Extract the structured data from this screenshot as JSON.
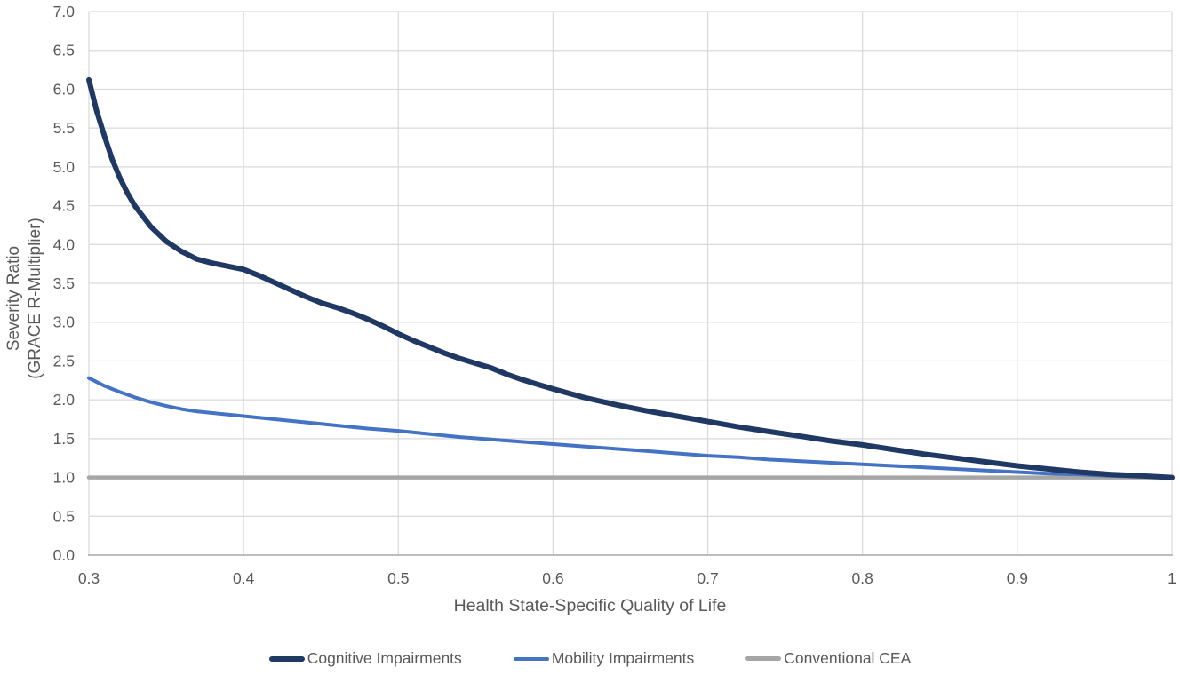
{
  "figure": {
    "background": "#ffffff"
  },
  "chart_data": {
    "type": "line",
    "title": "",
    "xlabel": "Health State-Specific Quality of Life",
    "ylabel_line1": "Severity Ratio",
    "ylabel_line2": "(GRACE R-Multiplier)",
    "xlim": [
      0.3,
      1.0
    ],
    "ylim": [
      0.0,
      7.0
    ],
    "grid": true,
    "legend_position": "bottom",
    "x_ticks": [
      {
        "value": 0.3,
        "label": "0.3"
      },
      {
        "value": 0.4,
        "label": "0.4"
      },
      {
        "value": 0.5,
        "label": "0.5"
      },
      {
        "value": 0.6,
        "label": "0.6"
      },
      {
        "value": 0.7,
        "label": "0.7"
      },
      {
        "value": 0.8,
        "label": "0.8"
      },
      {
        "value": 0.9,
        "label": "0.9"
      },
      {
        "value": 1.0,
        "label": "1"
      }
    ],
    "y_ticks": [
      {
        "value": 0.0,
        "label": "0.0"
      },
      {
        "value": 0.5,
        "label": "0.5"
      },
      {
        "value": 1.0,
        "label": "1.0"
      },
      {
        "value": 1.5,
        "label": "1.5"
      },
      {
        "value": 2.0,
        "label": "2.0"
      },
      {
        "value": 2.5,
        "label": "2.5"
      },
      {
        "value": 3.0,
        "label": "3.0"
      },
      {
        "value": 3.5,
        "label": "3.5"
      },
      {
        "value": 4.0,
        "label": "4.0"
      },
      {
        "value": 4.5,
        "label": "4.5"
      },
      {
        "value": 5.0,
        "label": "5.0"
      },
      {
        "value": 5.5,
        "label": "5.5"
      },
      {
        "value": 6.0,
        "label": "6.0"
      },
      {
        "value": 6.5,
        "label": "6.5"
      },
      {
        "value": 7.0,
        "label": "7.0"
      }
    ],
    "colors": {
      "gridline": "#d9d9d9",
      "axis_line": "#b5b5b5",
      "tick_text": "#595959",
      "title_text": "#595959",
      "legend_text": "#595959"
    },
    "series": [
      {
        "name": "Cognitive Impairments",
        "color": "#1f3864",
        "line_width": 6,
        "points": [
          [
            0.3,
            6.12
          ],
          [
            0.305,
            5.72
          ],
          [
            0.31,
            5.4
          ],
          [
            0.315,
            5.1
          ],
          [
            0.32,
            4.86
          ],
          [
            0.325,
            4.66
          ],
          [
            0.33,
            4.49
          ],
          [
            0.34,
            4.23
          ],
          [
            0.35,
            4.04
          ],
          [
            0.36,
            3.91
          ],
          [
            0.37,
            3.81
          ],
          [
            0.38,
            3.76
          ],
          [
            0.39,
            3.72
          ],
          [
            0.4,
            3.68
          ],
          [
            0.41,
            3.6
          ],
          [
            0.42,
            3.51
          ],
          [
            0.43,
            3.42
          ],
          [
            0.44,
            3.33
          ],
          [
            0.45,
            3.25
          ],
          [
            0.46,
            3.19
          ],
          [
            0.47,
            3.12
          ],
          [
            0.48,
            3.04
          ],
          [
            0.49,
            2.95
          ],
          [
            0.5,
            2.85
          ],
          [
            0.51,
            2.76
          ],
          [
            0.52,
            2.68
          ],
          [
            0.53,
            2.6
          ],
          [
            0.54,
            2.53
          ],
          [
            0.55,
            2.47
          ],
          [
            0.56,
            2.41
          ],
          [
            0.57,
            2.33
          ],
          [
            0.58,
            2.26
          ],
          [
            0.59,
            2.2
          ],
          [
            0.6,
            2.14
          ],
          [
            0.62,
            2.03
          ],
          [
            0.64,
            1.94
          ],
          [
            0.66,
            1.86
          ],
          [
            0.68,
            1.79
          ],
          [
            0.7,
            1.72
          ],
          [
            0.72,
            1.65
          ],
          [
            0.74,
            1.59
          ],
          [
            0.76,
            1.53
          ],
          [
            0.78,
            1.47
          ],
          [
            0.8,
            1.42
          ],
          [
            0.82,
            1.36
          ],
          [
            0.84,
            1.3
          ],
          [
            0.86,
            1.25
          ],
          [
            0.88,
            1.2
          ],
          [
            0.9,
            1.15
          ],
          [
            0.92,
            1.11
          ],
          [
            0.94,
            1.07
          ],
          [
            0.96,
            1.04
          ],
          [
            0.98,
            1.02
          ],
          [
            1.0,
            1.0
          ]
        ]
      },
      {
        "name": "Mobility Impairments",
        "color": "#4472c4",
        "line_width": 4,
        "points": [
          [
            0.3,
            2.28
          ],
          [
            0.31,
            2.18
          ],
          [
            0.32,
            2.1
          ],
          [
            0.33,
            2.03
          ],
          [
            0.34,
            1.97
          ],
          [
            0.35,
            1.92
          ],
          [
            0.36,
            1.88
          ],
          [
            0.37,
            1.85
          ],
          [
            0.38,
            1.83
          ],
          [
            0.39,
            1.81
          ],
          [
            0.4,
            1.79
          ],
          [
            0.42,
            1.75
          ],
          [
            0.44,
            1.71
          ],
          [
            0.46,
            1.67
          ],
          [
            0.48,
            1.63
          ],
          [
            0.5,
            1.6
          ],
          [
            0.52,
            1.56
          ],
          [
            0.54,
            1.52
          ],
          [
            0.56,
            1.49
          ],
          [
            0.58,
            1.46
          ],
          [
            0.6,
            1.43
          ],
          [
            0.62,
            1.4
          ],
          [
            0.64,
            1.37
          ],
          [
            0.66,
            1.34
          ],
          [
            0.68,
            1.31
          ],
          [
            0.7,
            1.28
          ],
          [
            0.72,
            1.26
          ],
          [
            0.74,
            1.23
          ],
          [
            0.76,
            1.21
          ],
          [
            0.78,
            1.19
          ],
          [
            0.8,
            1.17
          ],
          [
            0.82,
            1.15
          ],
          [
            0.84,
            1.13
          ],
          [
            0.86,
            1.11
          ],
          [
            0.88,
            1.09
          ],
          [
            0.9,
            1.07
          ],
          [
            0.92,
            1.05
          ],
          [
            0.94,
            1.04
          ],
          [
            0.96,
            1.02
          ],
          [
            0.98,
            1.01
          ],
          [
            1.0,
            1.0
          ]
        ]
      },
      {
        "name": "Conventional CEA",
        "color": "#a6a6a6",
        "line_width": 4.5,
        "points": [
          [
            0.3,
            1.0
          ],
          [
            1.0,
            1.0
          ]
        ]
      }
    ]
  }
}
